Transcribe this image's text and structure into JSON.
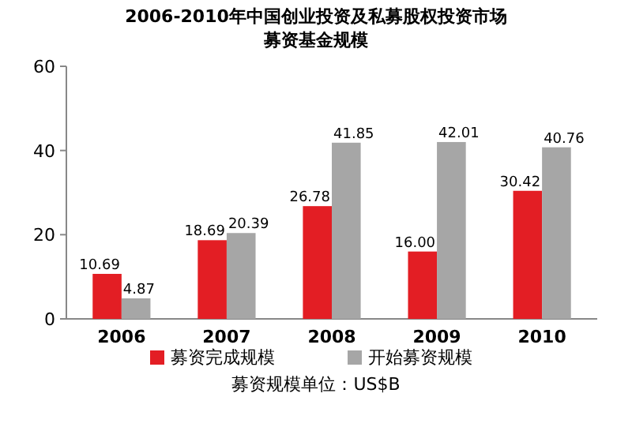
{
  "chart_data": {
    "type": "bar",
    "title": "2006-2010年中国创业投资及私募股权投资市场",
    "subtitle": "募资基金规模",
    "categories": [
      "2006",
      "2007",
      "2008",
      "2009",
      "2010"
    ],
    "series": [
      {
        "name": "募资完成规模",
        "color": "#e31e24",
        "values": [
          10.69,
          18.69,
          26.78,
          16.0,
          30.42
        ]
      },
      {
        "name": "开始募资规模",
        "color": "#a6a6a6",
        "values": [
          4.87,
          20.39,
          41.85,
          42.01,
          40.76
        ]
      }
    ],
    "value_labels": [
      [
        "10.69",
        "18.69",
        "26.78",
        "16.00",
        "30.42"
      ],
      [
        "4.87",
        "20.39",
        "41.85",
        "42.01",
        "40.76"
      ]
    ],
    "ylim": [
      0,
      60
    ],
    "yticks": [
      0,
      20,
      40,
      60
    ],
    "grid": false,
    "legend": "bottom",
    "annotations": [
      "募资规模单位：US$B"
    ]
  }
}
